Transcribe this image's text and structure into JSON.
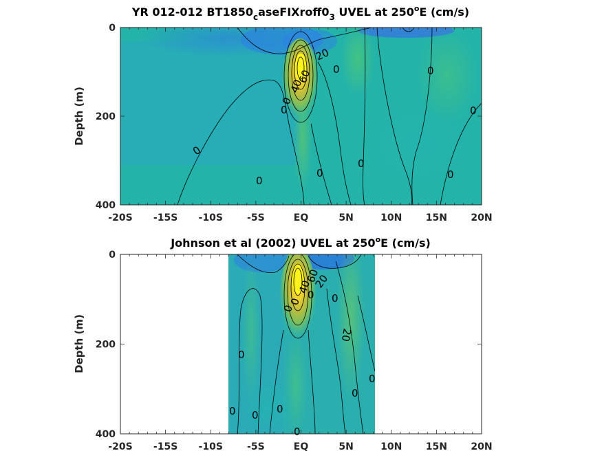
{
  "chart_data": [
    {
      "type": "heatmap",
      "title_parts": {
        "a": "YR 012-012 BT1850",
        "sub1": "c",
        "b": "aseFIXroff0",
        "sub2": "3",
        "c": " UVEL at 250",
        "sup": "o",
        "d": "E (cm/s)"
      },
      "ylabel": "Depth (m)",
      "xlim": [
        -20,
        20
      ],
      "ylim": [
        0,
        400
      ],
      "y_reversed": true,
      "x_ticks": [
        "-20S",
        "-15S",
        "-10S",
        "-5S",
        "EQ",
        "5N",
        "10N",
        "15N",
        "20N"
      ],
      "y_ticks": [
        "0",
        "200",
        "400"
      ],
      "data_extent_x": [
        -20,
        20
      ],
      "colormap": "parula",
      "contour_labels": [
        "20",
        "0",
        "0",
        "0",
        "0",
        "0",
        "0",
        "0",
        "0",
        "0",
        "0",
        "40",
        "60",
        "0",
        "0",
        "0"
      ]
    },
    {
      "type": "heatmap",
      "title_parts": {
        "a": "Johnson et al (2002) UVEL at 250",
        "sup": "o",
        "d": "E (cm/s)"
      },
      "ylabel": "Depth (m)",
      "xlim": [
        -20,
        20
      ],
      "ylim": [
        0,
        400
      ],
      "y_reversed": true,
      "x_ticks": [
        "-20S",
        "-15S",
        "-10S",
        "-5S",
        "EQ",
        "5N",
        "10N",
        "15N",
        "20N"
      ],
      "y_ticks": [
        "0",
        "200",
        "400"
      ],
      "data_extent_x": [
        -8,
        8.5
      ],
      "colormap": "parula",
      "contour_labels": [
        "20",
        "20",
        "0",
        "0",
        "0",
        "0",
        "0",
        "0",
        "0",
        "0",
        "0",
        "0",
        "0",
        "40",
        "60"
      ]
    }
  ]
}
